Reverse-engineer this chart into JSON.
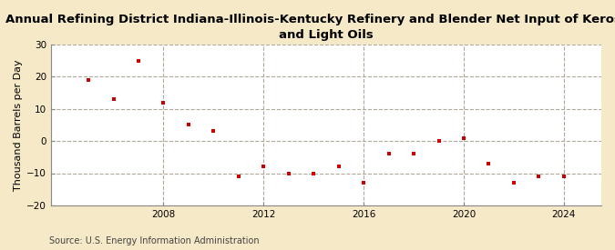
{
  "title": "Annual Refining District Indiana-Illinois-Kentucky Refinery and Blender Net Input of Kerosene\nand Light Oils",
  "ylabel": "Thousand Barrels per Day",
  "source": "Source: U.S. Energy Information Administration",
  "background_color": "#f5e9c8",
  "plot_bg_color": "#ffffff",
  "marker_color": "#cc0000",
  "years": [
    2005,
    2006,
    2007,
    2008,
    2009,
    2010,
    2011,
    2012,
    2013,
    2014,
    2015,
    2016,
    2017,
    2018,
    2019,
    2020,
    2021,
    2022,
    2023,
    2024
  ],
  "values": [
    19.0,
    13.0,
    25.0,
    12.0,
    5.0,
    3.0,
    -11.0,
    -8.0,
    -10.0,
    -10.0,
    -8.0,
    -13.0,
    -4.0,
    -4.0,
    0.0,
    1.0,
    -7.0,
    -13.0,
    -11.0,
    -11.0
  ],
  "ylim": [
    -20,
    30
  ],
  "yticks": [
    -20,
    -10,
    0,
    10,
    20,
    30
  ],
  "xlim": [
    2003.5,
    2025.5
  ],
  "xticks": [
    2008,
    2012,
    2016,
    2020,
    2024
  ],
  "grid_color": "#b0a898",
  "title_fontsize": 9.5,
  "label_fontsize": 8,
  "tick_fontsize": 7.5,
  "source_fontsize": 7
}
